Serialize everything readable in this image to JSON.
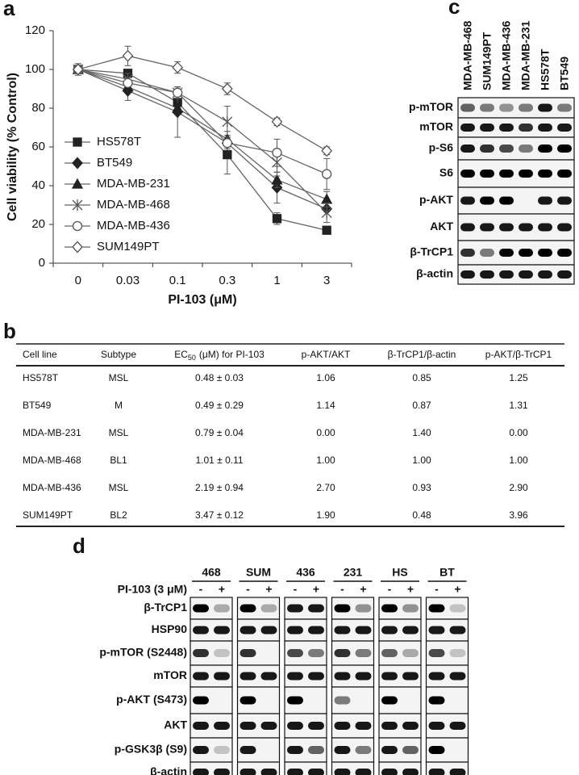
{
  "panel_labels": [
    "a",
    "b",
    "c",
    "d"
  ],
  "chart_data": {
    "type": "line",
    "x_label": "PI-103 (μM)",
    "y_label": "Cell viability (% Control)",
    "categories": [
      "0",
      "0.03",
      "0.1",
      "0.3",
      "1",
      "3"
    ],
    "ylim": [
      0,
      120
    ],
    "yticks": [
      0,
      20,
      40,
      60,
      80,
      100,
      120
    ],
    "legend": "left",
    "series": [
      {
        "name": "HS578T",
        "color": "#222222",
        "marker": "square",
        "filled": true,
        "values": [
          100,
          98,
          83,
          56,
          23,
          17
        ],
        "errors": [
          null,
          null,
          5,
          10,
          3,
          2
        ]
      },
      {
        "name": "BT549",
        "color": "#222222",
        "marker": "diamond",
        "filled": true,
        "values": [
          100,
          89,
          78,
          62,
          39,
          28
        ],
        "errors": [
          null,
          5,
          13,
          null,
          8,
          null
        ]
      },
      {
        "name": "MDA-MB-231",
        "color": "#222222",
        "marker": "triangle",
        "filled": true,
        "values": [
          100,
          91,
          80,
          64,
          43,
          33
        ],
        "errors": [
          null,
          null,
          null,
          4,
          4,
          4
        ]
      },
      {
        "name": "MDA-MB-468",
        "color": "#555555",
        "marker": "star",
        "filled": false,
        "values": [
          100,
          95,
          88,
          73,
          52,
          26
        ],
        "errors": [
          null,
          3,
          3,
          8,
          7,
          5
        ]
      },
      {
        "name": "MDA-MB-436",
        "color": "#555555",
        "marker": "circle",
        "filled": false,
        "values": [
          100,
          93,
          88,
          62,
          57,
          46
        ],
        "errors": [
          null,
          null,
          null,
          3,
          7,
          8
        ]
      },
      {
        "name": "SUM149PT",
        "color": "#555555",
        "marker": "diamond",
        "filled": false,
        "values": [
          100,
          107,
          101,
          90,
          73,
          58
        ],
        "errors": [
          3,
          5,
          3,
          3,
          2,
          2
        ]
      }
    ]
  },
  "table": {
    "header": [
      "Cell line",
      "Subtype",
      {
        "base": "EC",
        "sub": "50",
        "rest": "(μM) for PI-103"
      },
      "p-AKT/AKT",
      "β-TrCP1/β-actin",
      "p-AKT/β-TrCP1"
    ],
    "rows": [
      [
        "HS578T",
        "MSL",
        "0.48 ± 0.03",
        "1.06",
        "0.85",
        "1.25"
      ],
      [
        "BT549",
        "M",
        "0.49 ± 0.29",
        "1.14",
        "0.87",
        "1.31"
      ],
      [
        "MDA-MB-231",
        "MSL",
        "0.79 ± 0.04",
        "0.00",
        "1.40",
        "0.00"
      ],
      [
        "MDA-MB-468",
        "BL1",
        "1.01 ± 0.11",
        "1.00",
        "1.00",
        "1.00"
      ],
      [
        "MDA-MB-436",
        "MSL",
        "2.19 ± 0.94",
        "2.70",
        "0.93",
        "2.90"
      ],
      [
        "SUM149PT",
        "BL2",
        "3.47 ± 0.12",
        "1.90",
        "0.48",
        "3.96"
      ]
    ]
  },
  "blot_c": {
    "lanes": [
      "MDA-MB-468",
      "SUM149PT",
      "MDA-MB-436",
      "MDA-MB-231",
      "HS578T",
      "BT549"
    ],
    "rows": [
      "p-mTOR",
      "mTOR",
      "p-S6",
      "S6",
      "p-AKT",
      "AKT",
      "β-TrCP1",
      "β-actin"
    ]
  },
  "blot_d": {
    "groups": [
      "468",
      "SUM",
      "436",
      "231",
      "HS",
      "BT"
    ],
    "treatment": "PI-103 (3 μM)",
    "signs": [
      "-",
      "+"
    ],
    "rows": [
      "β-TrCP1",
      "HSP90",
      "p-mTOR (S2448)",
      "mTOR",
      "p-AKT (S473)",
      "AKT",
      "p-GSK3β (S9)",
      "β-actin"
    ]
  }
}
